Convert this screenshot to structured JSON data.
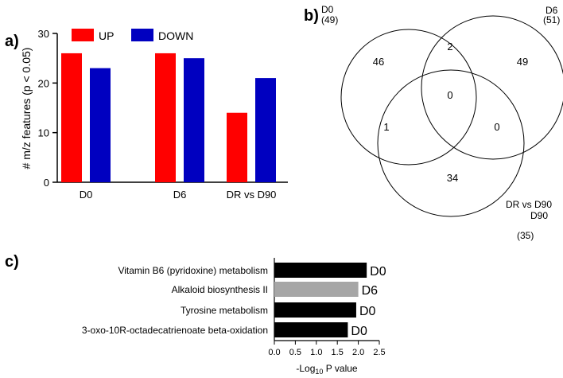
{
  "panels": {
    "a": "a)",
    "b": "b)",
    "c": "c)"
  },
  "chart_data": [
    {
      "type": "bar",
      "ylabel": "# m/z features (p < 0.05)",
      "xlabel": "",
      "ylim": [
        0,
        30
      ],
      "yticks": [
        0,
        10,
        20,
        30
      ],
      "categories": [
        "D0",
        "D6",
        "DR vs D90"
      ],
      "series": [
        {
          "name": "UP",
          "color": "#ff0000",
          "values": [
            26,
            26,
            14
          ]
        },
        {
          "name": "DOWN",
          "color": "#0000c0",
          "values": [
            23,
            25,
            21
          ]
        }
      ],
      "legend": "top-left",
      "grid": false
    },
    {
      "type": "venn",
      "sets": [
        {
          "name": "D0",
          "count": "(49)"
        },
        {
          "name": "D6",
          "count": "(51)"
        },
        {
          "name": "DR vs D90",
          "count": "(35)"
        }
      ],
      "regions": {
        "only_D0": 46,
        "only_D6": 49,
        "only_DR": 34,
        "D0_D6": 2,
        "D0_DR": 1,
        "D6_DR": 0,
        "all": 0
      }
    },
    {
      "type": "bar",
      "orientation": "horizontal",
      "xlabel_prefix": "-Log",
      "xlabel_sub": "10",
      "xlabel_suffix": " P value",
      "xlim": [
        0,
        2.5
      ],
      "xticks": [
        "0.0",
        "0.5",
        "1.0",
        "1.5",
        "2.0",
        "2.5"
      ],
      "categories": [
        "Vitamin B6 (pyridoxine) metabolism",
        "Alkaloid biosynthesis II",
        "Tyrosine metabolism",
        "3-oxo-10R-octadecatrienoate beta-oxidation"
      ],
      "values": [
        2.2,
        2.0,
        1.95,
        1.75
      ],
      "labels": [
        "D0",
        "D6",
        "D0",
        "D0"
      ],
      "colors": [
        "#000000",
        "#a6a6a6",
        "#000000",
        "#000000"
      ]
    }
  ]
}
